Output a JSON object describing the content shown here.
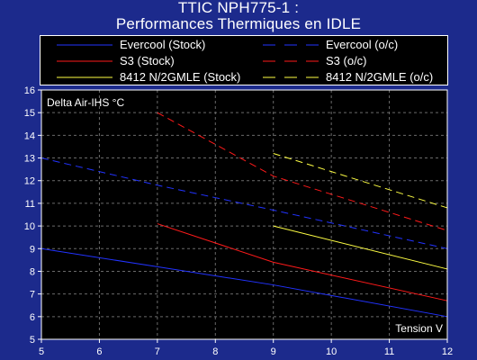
{
  "chart_data": {
    "type": "line",
    "title": [
      "TTIC NPH775-1 :",
      "Performances Thermiques en IDLE"
    ],
    "ylabel": "Delta Air-IHS °C",
    "xlabel": "Tension V",
    "xlim": [
      5,
      12
    ],
    "ylim": [
      5,
      16
    ],
    "xticks": [
      5,
      6,
      7,
      8,
      9,
      10,
      11,
      12
    ],
    "yticks": [
      5,
      6,
      7,
      8,
      9,
      10,
      11,
      12,
      13,
      14,
      15,
      16
    ],
    "grid": true,
    "background": "#000000",
    "series": [
      {
        "name": "Evercool (Stock)",
        "color": "#2233ff",
        "dash": "solid",
        "x": [
          5,
          7,
          9,
          12
        ],
        "y": [
          9.0,
          8.2,
          7.4,
          6.0
        ]
      },
      {
        "name": "Evercool (o/c)",
        "color": "#2233ff",
        "dash": "dashed",
        "x": [
          5,
          7,
          9,
          12
        ],
        "y": [
          13.0,
          11.8,
          10.7,
          9.0
        ]
      },
      {
        "name": "S3 (Stock)",
        "color": "#ff1a1a",
        "dash": "solid",
        "x": [
          7,
          9,
          12
        ],
        "y": [
          10.1,
          8.4,
          6.7
        ]
      },
      {
        "name": "S3 (o/c)",
        "color": "#ff1a1a",
        "dash": "dashed",
        "x": [
          7,
          9,
          12
        ],
        "y": [
          15.0,
          12.2,
          9.8
        ]
      },
      {
        "name": "8412 N/2GMLE (Stock)",
        "color": "#ffff44",
        "dash": "solid",
        "x": [
          9,
          12
        ],
        "y": [
          10.0,
          8.1
        ]
      },
      {
        "name": "8412 N/2GMLE (o/c)",
        "color": "#ffff44",
        "dash": "dashed",
        "x": [
          9,
          12
        ],
        "y": [
          13.2,
          10.8
        ]
      }
    ]
  }
}
